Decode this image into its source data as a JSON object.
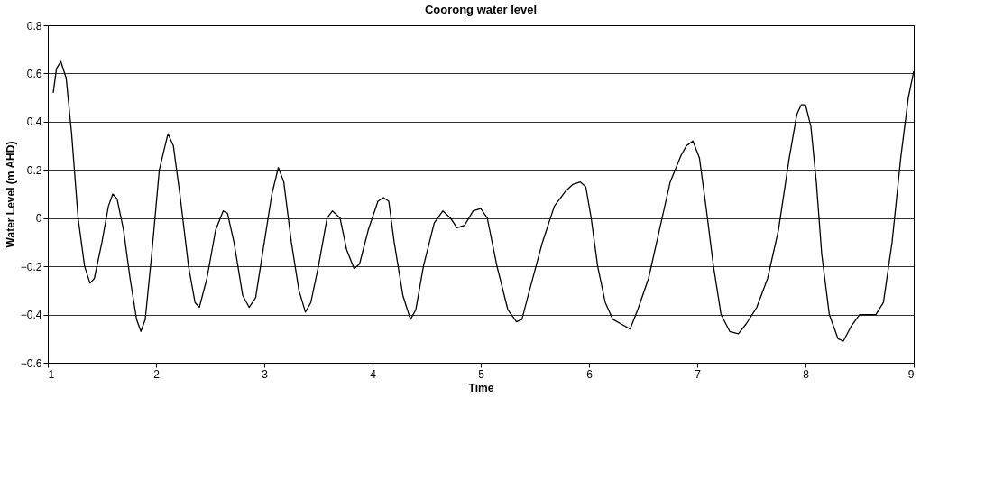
{
  "chart_data": {
    "type": "line",
    "title": "Coorong water level",
    "xlabel": "Time",
    "ylabel": "Water Level (m AHD)",
    "xlim": [
      1,
      9
    ],
    "xticks": [
      1,
      2,
      3,
      4,
      5,
      6,
      7,
      8,
      9
    ],
    "ylim": [
      -0.6,
      0.8
    ],
    "yticks": [
      -0.6,
      -0.4,
      -0.2,
      0,
      0.2,
      0.4,
      0.6,
      0.8
    ],
    "grid": "y",
    "legend": false,
    "marker": "none",
    "line_style": "solid",
    "series": [
      {
        "color": "#000000",
        "x": [
          1.05,
          1.08,
          1.12,
          1.17,
          1.22,
          1.28,
          1.34,
          1.39,
          1.43,
          1.5,
          1.56,
          1.6,
          1.64,
          1.7,
          1.76,
          1.82,
          1.86,
          1.9,
          1.96,
          2.03,
          2.11,
          2.16,
          2.22,
          2.3,
          2.36,
          2.4,
          2.47,
          2.55,
          2.62,
          2.66,
          2.72,
          2.8,
          2.86,
          2.92,
          3.0,
          3.07,
          3.13,
          3.18,
          3.25,
          3.32,
          3.38,
          3.43,
          3.5,
          3.58,
          3.63,
          3.7,
          3.76,
          3.83,
          3.88,
          3.96,
          4.05,
          4.1,
          4.15,
          4.2,
          4.28,
          4.35,
          4.4,
          4.47,
          4.57,
          4.65,
          4.72,
          4.78,
          4.85,
          4.93,
          5.0,
          5.06,
          5.15,
          5.25,
          5.33,
          5.38,
          5.45,
          5.57,
          5.68,
          5.78,
          5.85,
          5.92,
          5.97,
          6.02,
          6.08,
          6.15,
          6.22,
          6.3,
          6.38,
          6.45,
          6.55,
          6.65,
          6.75,
          6.85,
          6.9,
          6.96,
          7.02,
          7.08,
          7.15,
          7.22,
          7.3,
          7.38,
          7.45,
          7.55,
          7.65,
          7.75,
          7.85,
          7.92,
          7.96,
          8.0,
          8.05,
          8.1,
          8.15,
          8.22,
          8.3,
          8.35,
          8.42,
          8.5,
          8.58,
          8.65,
          8.72,
          8.8,
          8.88,
          8.95,
          9.0
        ],
        "values": [
          0.52,
          0.62,
          0.65,
          0.58,
          0.35,
          0.0,
          -0.2,
          -0.27,
          -0.25,
          -0.1,
          0.05,
          0.1,
          0.08,
          -0.05,
          -0.25,
          -0.42,
          -0.47,
          -0.42,
          -0.15,
          0.2,
          0.35,
          0.3,
          0.1,
          -0.2,
          -0.35,
          -0.37,
          -0.25,
          -0.05,
          0.03,
          0.02,
          -0.1,
          -0.32,
          -0.37,
          -0.33,
          -0.1,
          0.1,
          0.21,
          0.15,
          -0.1,
          -0.3,
          -0.39,
          -0.35,
          -0.2,
          0.0,
          0.03,
          0.0,
          -0.13,
          -0.21,
          -0.19,
          -0.05,
          0.07,
          0.085,
          0.07,
          -0.1,
          -0.32,
          -0.42,
          -0.38,
          -0.2,
          -0.02,
          0.03,
          0.0,
          -0.04,
          -0.03,
          0.03,
          0.04,
          0.0,
          -0.2,
          -0.38,
          -0.43,
          -0.42,
          -0.3,
          -0.1,
          0.05,
          0.11,
          0.14,
          0.15,
          0.13,
          0.0,
          -0.2,
          -0.35,
          -0.42,
          -0.44,
          -0.46,
          -0.38,
          -0.25,
          -0.05,
          0.15,
          0.26,
          0.3,
          0.32,
          0.25,
          0.05,
          -0.2,
          -0.4,
          -0.47,
          -0.48,
          -0.44,
          -0.37,
          -0.25,
          -0.05,
          0.25,
          0.43,
          0.47,
          0.47,
          0.38,
          0.15,
          -0.15,
          -0.4,
          -0.5,
          -0.51,
          -0.45,
          -0.4,
          -0.4,
          -0.4,
          -0.35,
          -0.1,
          0.25,
          0.5,
          0.61
        ]
      }
    ]
  }
}
